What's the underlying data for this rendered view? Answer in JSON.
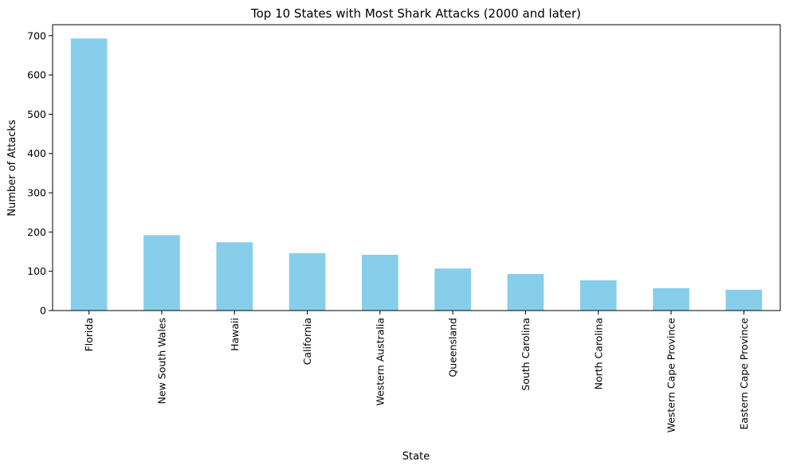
{
  "chart_data": {
    "type": "bar",
    "title": "Top 10 States with Most Shark Attacks (2000 and later)",
    "xlabel": "State",
    "ylabel": "Number of Attacks",
    "categories": [
      "Florida",
      "New South Wales",
      "Hawaii",
      "California",
      "Western Australia",
      "Queensland",
      "South Carolina",
      "North Carolina",
      "Western Cape Province",
      "Eastern Cape Province"
    ],
    "values": [
      693,
      192,
      174,
      146,
      142,
      107,
      93,
      77,
      57,
      53
    ],
    "ylim": [
      0,
      728
    ],
    "yticks": [
      0,
      100,
      200,
      300,
      400,
      500,
      600,
      700
    ],
    "bar_color": "#87CEEB",
    "grid": false,
    "legend": "none"
  }
}
